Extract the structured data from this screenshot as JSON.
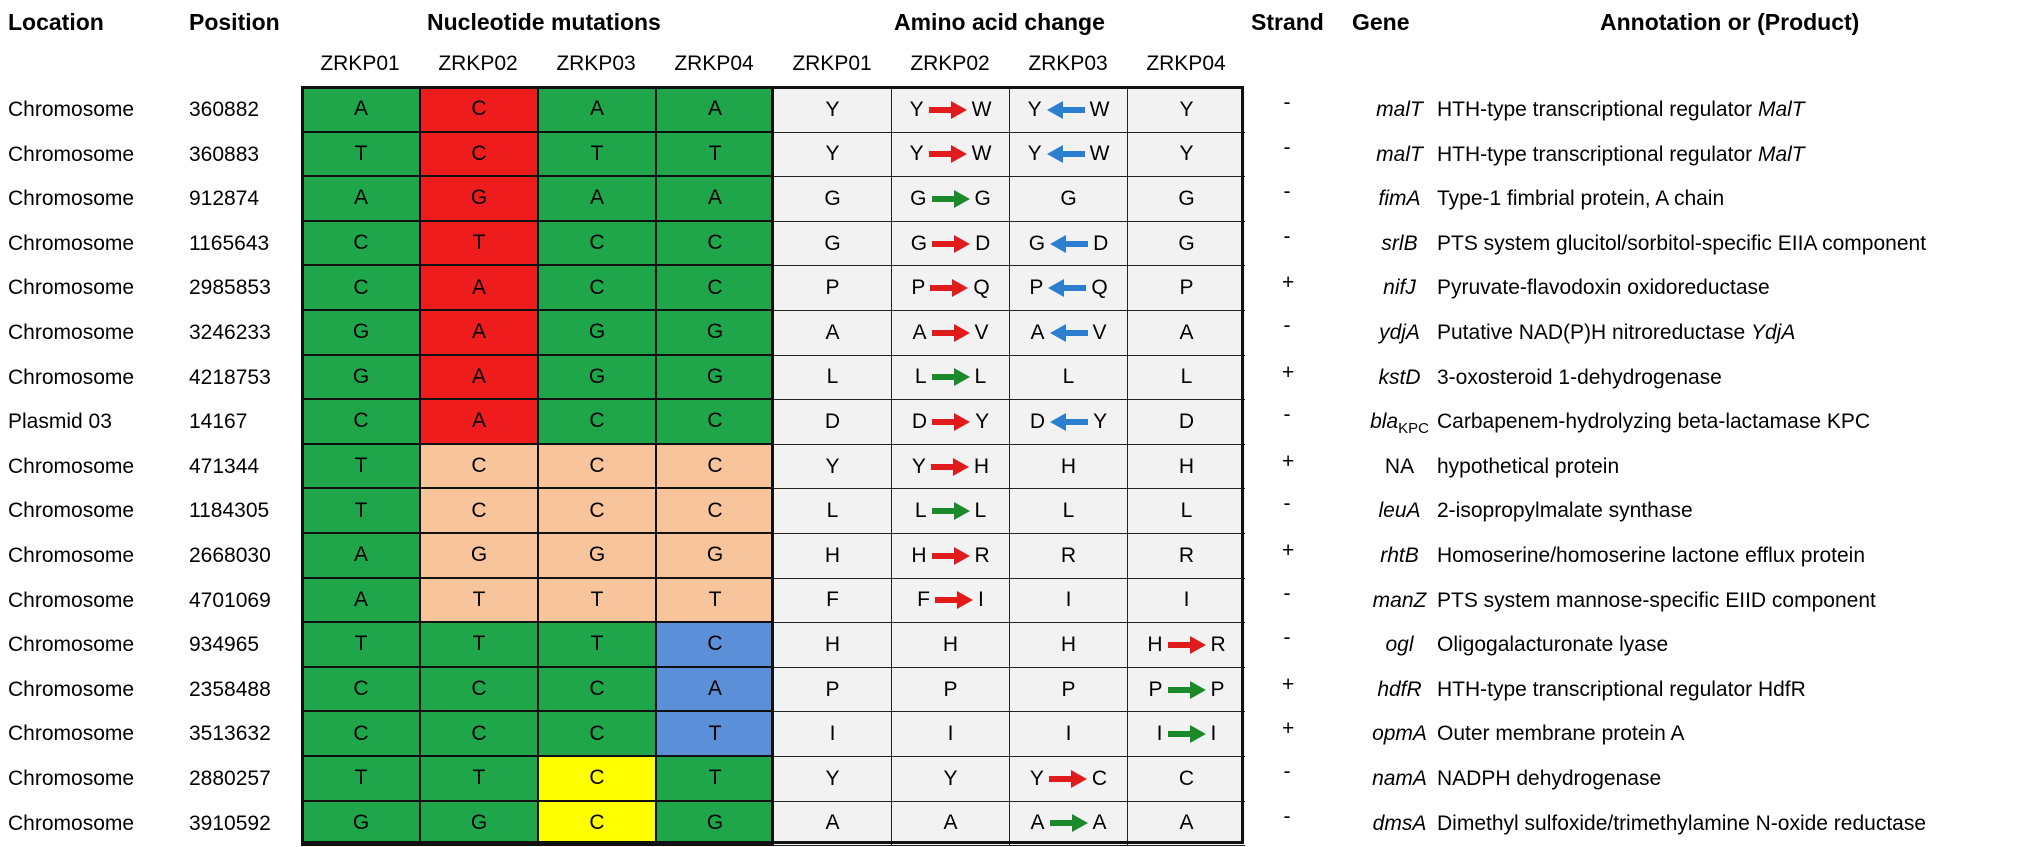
{
  "headers": {
    "location": "Location",
    "position": "Position",
    "nucleotide": "Nucleotide mutations",
    "amino_acid": "Amino acid change",
    "strand": "Strand",
    "gene": "Gene",
    "annotation": "Annotation or (Product)"
  },
  "strains": [
    "ZRKP01",
    "ZRKP02",
    "ZRKP03",
    "ZRKP04"
  ],
  "colors": {
    "green": "#1fa64a",
    "red": "#ee1c1c",
    "orange": "#f8c49c",
    "blue": "#5b8fd8",
    "yellow": "#ffff00",
    "aa_bg": "#f2f2f2",
    "arrow_red": "#e01b1b",
    "arrow_green": "#1a8a2a",
    "arrow_blue": "#2c7fd0"
  },
  "rows": [
    {
      "location": "Chromosome",
      "position": "360882",
      "nt": [
        {
          "b": "A",
          "c": "green"
        },
        {
          "b": "C",
          "c": "red"
        },
        {
          "b": "A",
          "c": "green"
        },
        {
          "b": "A",
          "c": "green"
        }
      ],
      "aa": [
        {
          "a": "Y"
        },
        {
          "a": "Y",
          "b": "W",
          "d": "right",
          "c": "red"
        },
        {
          "a": "Y",
          "b": "W",
          "d": "left",
          "c": "blue"
        },
        {
          "a": "Y"
        }
      ],
      "strand": "-",
      "gene": "malT",
      "gene_sub": "",
      "ann": "HTH-type transcriptional regulator ",
      "ann_it": "MalT"
    },
    {
      "location": "Chromosome",
      "position": "360883",
      "nt": [
        {
          "b": "T",
          "c": "green"
        },
        {
          "b": "C",
          "c": "red"
        },
        {
          "b": "T",
          "c": "green"
        },
        {
          "b": "T",
          "c": "green"
        }
      ],
      "aa": [
        {
          "a": "Y"
        },
        {
          "a": "Y",
          "b": "W",
          "d": "right",
          "c": "red"
        },
        {
          "a": "Y",
          "b": "W",
          "d": "left",
          "c": "blue"
        },
        {
          "a": "Y"
        }
      ],
      "strand": "-",
      "gene": "malT",
      "gene_sub": "",
      "ann": "HTH-type transcriptional regulator ",
      "ann_it": "MalT"
    },
    {
      "location": "Chromosome",
      "position": "912874",
      "nt": [
        {
          "b": "A",
          "c": "green"
        },
        {
          "b": "G",
          "c": "red"
        },
        {
          "b": "A",
          "c": "green"
        },
        {
          "b": "A",
          "c": "green"
        }
      ],
      "aa": [
        {
          "a": "G"
        },
        {
          "a": "G",
          "b": "G",
          "d": "right",
          "c": "green"
        },
        {
          "a": "G"
        },
        {
          "a": "G"
        }
      ],
      "strand": "-",
      "gene": "fimA",
      "gene_sub": "",
      "ann": "Type-1 fimbrial protein, A chain",
      "ann_it": ""
    },
    {
      "location": "Chromosome",
      "position": "1165643",
      "nt": [
        {
          "b": "C",
          "c": "green"
        },
        {
          "b": "T",
          "c": "red"
        },
        {
          "b": "C",
          "c": "green"
        },
        {
          "b": "C",
          "c": "green"
        }
      ],
      "aa": [
        {
          "a": "G"
        },
        {
          "a": "G",
          "b": "D",
          "d": "right",
          "c": "red"
        },
        {
          "a": "G",
          "b": "D",
          "d": "left",
          "c": "blue"
        },
        {
          "a": "G"
        }
      ],
      "strand": "-",
      "gene": "srlB",
      "gene_sub": "",
      "ann": "PTS system glucitol/sorbitol-specific EIIA component",
      "ann_it": ""
    },
    {
      "location": "Chromosome",
      "position": "2985853",
      "nt": [
        {
          "b": "C",
          "c": "green"
        },
        {
          "b": "A",
          "c": "red"
        },
        {
          "b": "C",
          "c": "green"
        },
        {
          "b": "C",
          "c": "green"
        }
      ],
      "aa": [
        {
          "a": "P"
        },
        {
          "a": "P",
          "b": "Q",
          "d": "right",
          "c": "red"
        },
        {
          "a": "P",
          "b": "Q",
          "d": "left",
          "c": "blue"
        },
        {
          "a": "P"
        }
      ],
      "strand": "+",
      "gene": "nifJ",
      "gene_sub": "",
      "ann": "Pyruvate-flavodoxin oxidoreductase",
      "ann_it": ""
    },
    {
      "location": "Chromosome",
      "position": "3246233",
      "nt": [
        {
          "b": "G",
          "c": "green"
        },
        {
          "b": "A",
          "c": "red"
        },
        {
          "b": "G",
          "c": "green"
        },
        {
          "b": "G",
          "c": "green"
        }
      ],
      "aa": [
        {
          "a": "A"
        },
        {
          "a": "A",
          "b": "V",
          "d": "right",
          "c": "red"
        },
        {
          "a": "A",
          "b": "V",
          "d": "left",
          "c": "blue"
        },
        {
          "a": "A"
        }
      ],
      "strand": "-",
      "gene": "ydjA",
      "gene_sub": "",
      "ann": "Putative NAD(P)H nitroreductase ",
      "ann_it": "YdjA"
    },
    {
      "location": "Chromosome",
      "position": "4218753",
      "nt": [
        {
          "b": "G",
          "c": "green"
        },
        {
          "b": "A",
          "c": "red"
        },
        {
          "b": "G",
          "c": "green"
        },
        {
          "b": "G",
          "c": "green"
        }
      ],
      "aa": [
        {
          "a": "L"
        },
        {
          "a": "L",
          "b": "L",
          "d": "right",
          "c": "green"
        },
        {
          "a": "L"
        },
        {
          "a": "L"
        }
      ],
      "strand": "+",
      "gene": "kstD",
      "gene_sub": "",
      "ann": "3-oxosteroid 1-dehydrogenase",
      "ann_it": ""
    },
    {
      "location": "Plasmid 03",
      "position": "14167",
      "nt": [
        {
          "b": "C",
          "c": "green"
        },
        {
          "b": "A",
          "c": "red"
        },
        {
          "b": "C",
          "c": "green"
        },
        {
          "b": "C",
          "c": "green"
        }
      ],
      "aa": [
        {
          "a": "D"
        },
        {
          "a": "D",
          "b": "Y",
          "d": "right",
          "c": "red"
        },
        {
          "a": "D",
          "b": "Y",
          "d": "left",
          "c": "blue"
        },
        {
          "a": "D"
        }
      ],
      "strand": "-",
      "gene": "bla",
      "gene_sub": "KPC",
      "ann": "Carbapenem-hydrolyzing beta-lactamase KPC",
      "ann_it": ""
    },
    {
      "location": "Chromosome",
      "position": "471344",
      "nt": [
        {
          "b": "T",
          "c": "green"
        },
        {
          "b": "C",
          "c": "orange"
        },
        {
          "b": "C",
          "c": "orange"
        },
        {
          "b": "C",
          "c": "orange"
        }
      ],
      "aa": [
        {
          "a": "Y"
        },
        {
          "a": "Y",
          "b": "H",
          "d": "right",
          "c": "red"
        },
        {
          "a": "H"
        },
        {
          "a": "H"
        }
      ],
      "strand": "+",
      "gene": "NA",
      "gene_sub": "",
      "ann": "hypothetical protein",
      "ann_it": "",
      "gene_plain": true
    },
    {
      "location": "Chromosome",
      "position": "1184305",
      "nt": [
        {
          "b": "T",
          "c": "green"
        },
        {
          "b": "C",
          "c": "orange"
        },
        {
          "b": "C",
          "c": "orange"
        },
        {
          "b": "C",
          "c": "orange"
        }
      ],
      "aa": [
        {
          "a": "L"
        },
        {
          "a": "L",
          "b": "L",
          "d": "right",
          "c": "green"
        },
        {
          "a": "L"
        },
        {
          "a": "L"
        }
      ],
      "strand": "-",
      "gene": "leuA",
      "gene_sub": "",
      "ann": "2-isopropylmalate synthase",
      "ann_it": ""
    },
    {
      "location": "Chromosome",
      "position": "2668030",
      "nt": [
        {
          "b": "A",
          "c": "green"
        },
        {
          "b": "G",
          "c": "orange"
        },
        {
          "b": "G",
          "c": "orange"
        },
        {
          "b": "G",
          "c": "orange"
        }
      ],
      "aa": [
        {
          "a": "H"
        },
        {
          "a": "H",
          "b": "R",
          "d": "right",
          "c": "red"
        },
        {
          "a": "R"
        },
        {
          "a": "R"
        }
      ],
      "strand": "+",
      "gene": "rhtB",
      "gene_sub": "",
      "ann": "Homoserine/homoserine lactone efflux protein",
      "ann_it": ""
    },
    {
      "location": "Chromosome",
      "position": "4701069",
      "nt": [
        {
          "b": "A",
          "c": "green"
        },
        {
          "b": "T",
          "c": "orange"
        },
        {
          "b": "T",
          "c": "orange"
        },
        {
          "b": "T",
          "c": "orange"
        }
      ],
      "aa": [
        {
          "a": "F"
        },
        {
          "a": "F",
          "b": "I",
          "d": "right",
          "c": "red"
        },
        {
          "a": "I"
        },
        {
          "a": "I"
        }
      ],
      "strand": "-",
      "gene": "manZ",
      "gene_sub": "",
      "ann": "PTS system mannose-specific EIID component",
      "ann_it": ""
    },
    {
      "location": "Chromosome",
      "position": "934965",
      "nt": [
        {
          "b": "T",
          "c": "green"
        },
        {
          "b": "T",
          "c": "green"
        },
        {
          "b": "T",
          "c": "green"
        },
        {
          "b": "C",
          "c": "blue"
        }
      ],
      "aa": [
        {
          "a": "H"
        },
        {
          "a": "H"
        },
        {
          "a": "H"
        },
        {
          "a": "H",
          "b": "R",
          "d": "right",
          "c": "red"
        }
      ],
      "strand": "-",
      "gene": "ogl",
      "gene_sub": "",
      "ann": "Oligogalacturonate lyase",
      "ann_it": ""
    },
    {
      "location": "Chromosome",
      "position": "2358488",
      "nt": [
        {
          "b": "C",
          "c": "green"
        },
        {
          "b": "C",
          "c": "green"
        },
        {
          "b": "C",
          "c": "green"
        },
        {
          "b": "A",
          "c": "blue"
        }
      ],
      "aa": [
        {
          "a": "P"
        },
        {
          "a": "P"
        },
        {
          "a": "P"
        },
        {
          "a": "P",
          "b": "P",
          "d": "right",
          "c": "green"
        }
      ],
      "strand": "+",
      "gene": "hdfR",
      "gene_sub": "",
      "ann": "HTH-type transcriptional regulator HdfR",
      "ann_it": ""
    },
    {
      "location": "Chromosome",
      "position": "3513632",
      "nt": [
        {
          "b": "C",
          "c": "green"
        },
        {
          "b": "C",
          "c": "green"
        },
        {
          "b": "C",
          "c": "green"
        },
        {
          "b": "T",
          "c": "blue"
        }
      ],
      "aa": [
        {
          "a": "I"
        },
        {
          "a": "I"
        },
        {
          "a": "I"
        },
        {
          "a": "I",
          "b": "I",
          "d": "right",
          "c": "green"
        }
      ],
      "strand": "+",
      "gene": "opmA",
      "gene_sub": "",
      "ann": "Outer membrane protein A",
      "ann_it": ""
    },
    {
      "location": "Chromosome",
      "position": "2880257",
      "nt": [
        {
          "b": "T",
          "c": "green"
        },
        {
          "b": "T",
          "c": "green"
        },
        {
          "b": "C",
          "c": "yellow"
        },
        {
          "b": "T",
          "c": "green"
        }
      ],
      "aa": [
        {
          "a": "Y"
        },
        {
          "a": "Y"
        },
        {
          "a": "Y",
          "b": "C",
          "d": "right",
          "c": "red"
        },
        {
          "a": "C"
        }
      ],
      "strand": "-",
      "gene": "namA",
      "gene_sub": "",
      "ann": "NADPH dehydrogenase",
      "ann_it": ""
    },
    {
      "location": "Chromosome",
      "position": "3910592",
      "nt": [
        {
          "b": "G",
          "c": "green"
        },
        {
          "b": "G",
          "c": "green"
        },
        {
          "b": "C",
          "c": "yellow"
        },
        {
          "b": "G",
          "c": "green"
        }
      ],
      "aa": [
        {
          "a": "A"
        },
        {
          "a": "A"
        },
        {
          "a": "A",
          "b": "A",
          "d": "right",
          "c": "green"
        },
        {
          "a": "A"
        }
      ],
      "strand": "-",
      "gene": "dmsA",
      "gene_sub": "",
      "ann": "Dimethyl sulfoxide/trimethylamine N-oxide reductase",
      "ann_it": ""
    }
  ]
}
